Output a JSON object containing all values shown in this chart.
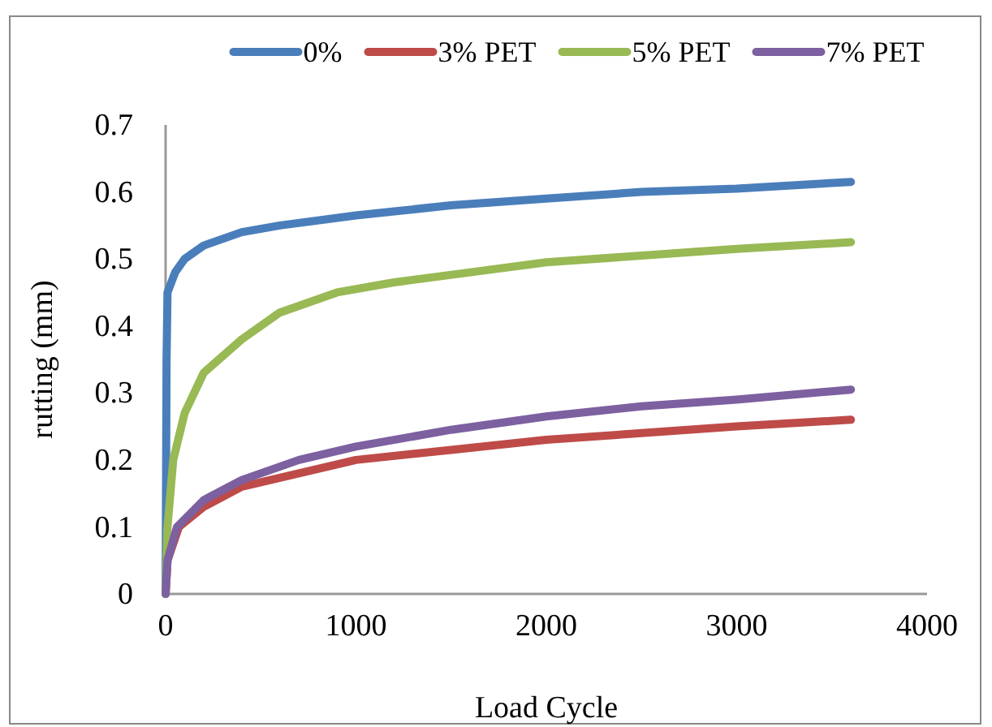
{
  "chart_data": {
    "type": "line",
    "xlabel": "Load Cycle",
    "ylabel": "rutting (mm)",
    "xlim": [
      0,
      4000
    ],
    "xticks": [
      0,
      1000,
      2000,
      3000,
      4000
    ],
    "ylim": [
      0,
      0.7
    ],
    "yticks": [
      0,
      0.1,
      0.2,
      0.3,
      0.4,
      0.5,
      0.6,
      0.7
    ],
    "grid": false,
    "legend": "top",
    "marker": "none",
    "line_style": "solid",
    "series": [
      {
        "name": "0%",
        "color": "#4a7ebb",
        "x": [
          0,
          5,
          10,
          50,
          100,
          200,
          400,
          600,
          1000,
          1500,
          2000,
          2500,
          3000,
          3600
        ],
        "values": [
          0,
          0.35,
          0.45,
          0.48,
          0.5,
          0.52,
          0.54,
          0.55,
          0.565,
          0.58,
          0.59,
          0.6,
          0.605,
          0.615
        ]
      },
      {
        "name": "3% PET",
        "color": "#be4b48",
        "x": [
          0,
          10,
          70,
          200,
          400,
          700,
          1000,
          1500,
          2000,
          2500,
          3000,
          3600
        ],
        "values": [
          0,
          0.05,
          0.1,
          0.13,
          0.16,
          0.18,
          0.2,
          0.215,
          0.23,
          0.24,
          0.25,
          0.26
        ]
      },
      {
        "name": "5% PET",
        "color": "#98b954",
        "x": [
          0,
          10,
          40,
          100,
          200,
          400,
          600,
          900,
          1200,
          1600,
          2000,
          2500,
          3000,
          3600
        ],
        "values": [
          0,
          0.1,
          0.2,
          0.27,
          0.33,
          0.38,
          0.42,
          0.45,
          0.465,
          0.48,
          0.495,
          0.505,
          0.515,
          0.525
        ]
      },
      {
        "name": "7% PET",
        "color": "#7d60a0",
        "x": [
          0,
          10,
          60,
          200,
          400,
          700,
          1000,
          1500,
          2000,
          2500,
          3000,
          3600
        ],
        "values": [
          0,
          0.05,
          0.1,
          0.14,
          0.17,
          0.2,
          0.22,
          0.245,
          0.265,
          0.28,
          0.29,
          0.305
        ]
      }
    ]
  }
}
